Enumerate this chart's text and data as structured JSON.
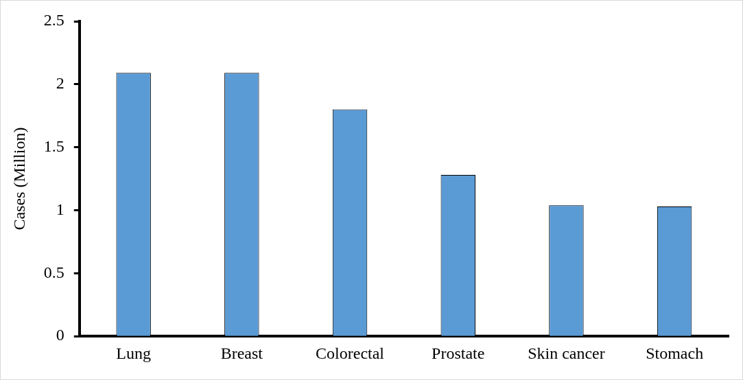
{
  "chart_data": {
    "type": "bar",
    "ylabel": "Cases (Million)",
    "categories": [
      "Lung",
      "Breast",
      "Colorectal",
      "Prostate",
      "Skin cancer",
      "Stomach"
    ],
    "values": [
      2.09,
      2.09,
      1.8,
      1.28,
      1.04,
      1.03
    ],
    "color": "#5b9bd5",
    "ylim": [
      0,
      2.5
    ],
    "yticks": [
      0,
      0.5,
      1,
      1.5,
      2,
      2.5
    ],
    "grid": false,
    "legend": false
  }
}
